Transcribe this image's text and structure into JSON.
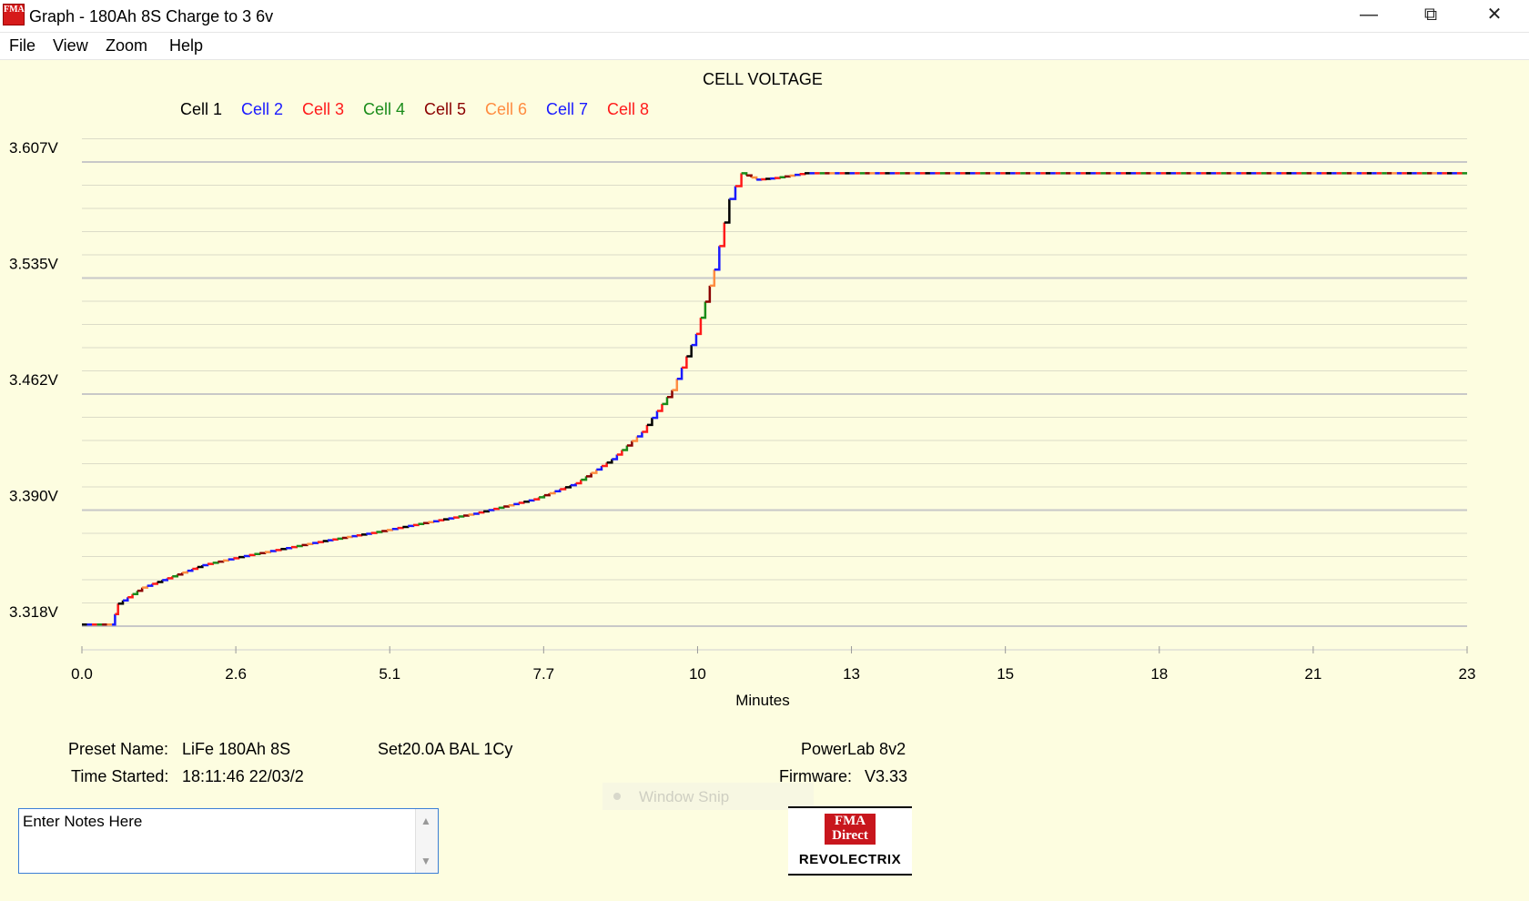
{
  "window": {
    "title": "Graph - 180Ah 8S Charge to 3 6v",
    "icon_text": "FMA",
    "controls": [
      "minimize",
      "maximize",
      "close"
    ]
  },
  "menu": [
    "File",
    "View",
    "Zoom",
    "Help"
  ],
  "chart_data": {
    "type": "line",
    "title": "CELL VOLTAGE",
    "xlabel": "Minutes",
    "ylabel": "",
    "x_ticks": [
      "0.0",
      "2.6",
      "5.1",
      "7.7",
      "10",
      "13",
      "15",
      "18",
      "21",
      "23"
    ],
    "y_ticks": [
      "3.607V",
      "3.535V",
      "3.462V",
      "3.390V",
      "3.318V"
    ],
    "xlim": [
      0,
      23
    ],
    "ylim": [
      3.318,
      3.607
    ],
    "grid": true,
    "legend_position": "top-left",
    "series": [
      {
        "name": "Cell 1",
        "color": "#000000"
      },
      {
        "name": "Cell 2",
        "color": "#1a1aff"
      },
      {
        "name": "Cell 3",
        "color": "#ff1a1a"
      },
      {
        "name": "Cell 4",
        "color": "#1a8c1a"
      },
      {
        "name": "Cell 5",
        "color": "#8b0000"
      },
      {
        "name": "Cell 6",
        "color": "#ff8c40"
      },
      {
        "name": "Cell 7",
        "color": "#1a1aff"
      },
      {
        "name": "Cell 8",
        "color": "#ff1a1a"
      }
    ],
    "curve": [
      {
        "x": 0.0,
        "y": 3.319
      },
      {
        "x": 0.5,
        "y": 3.319
      },
      {
        "x": 0.6,
        "y": 3.332
      },
      {
        "x": 1.0,
        "y": 3.342
      },
      {
        "x": 1.5,
        "y": 3.349
      },
      {
        "x": 2.0,
        "y": 3.356
      },
      {
        "x": 2.6,
        "y": 3.361
      },
      {
        "x": 3.3,
        "y": 3.366
      },
      {
        "x": 4.0,
        "y": 3.371
      },
      {
        "x": 4.8,
        "y": 3.376
      },
      {
        "x": 5.5,
        "y": 3.381
      },
      {
        "x": 6.5,
        "y": 3.388
      },
      {
        "x": 7.5,
        "y": 3.397
      },
      {
        "x": 8.2,
        "y": 3.407
      },
      {
        "x": 8.8,
        "y": 3.422
      },
      {
        "x": 9.3,
        "y": 3.439
      },
      {
        "x": 9.8,
        "y": 3.465
      },
      {
        "x": 10.2,
        "y": 3.5
      },
      {
        "x": 10.5,
        "y": 3.54
      },
      {
        "x": 10.75,
        "y": 3.584
      },
      {
        "x": 10.95,
        "y": 3.6
      },
      {
        "x": 11.2,
        "y": 3.596
      },
      {
        "x": 11.5,
        "y": 3.597
      },
      {
        "x": 12.0,
        "y": 3.6
      },
      {
        "x": 23.0,
        "y": 3.6
      }
    ]
  },
  "info": {
    "preset_label": "Preset Name:",
    "preset_value": "LiFe 180Ah 8S",
    "setting": "Set20.0A BAL 1Cy",
    "time_label": "Time Started:",
    "time_value": "18:11:46  22/03/2",
    "device": "PowerLab 8v2",
    "firmware_label": "Firmware:",
    "firmware_value": "V3.33"
  },
  "notes": {
    "value": "Enter Notes Here"
  },
  "snip_overlay": "Window Snip",
  "logo": {
    "badge": "FMA Direct",
    "text": "REVOLECTRIX"
  }
}
